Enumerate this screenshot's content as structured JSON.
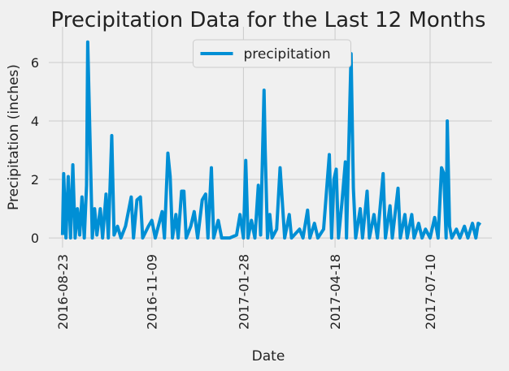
{
  "chart_data": {
    "type": "line",
    "title": "Precipitation Data for the Last 12 Months",
    "xlabel": "Date",
    "ylabel": "Precipitation (inches)",
    "legend": "upper center",
    "grid": true,
    "xlim": [
      "2016-08-11",
      "2017-09-02"
    ],
    "ylim": [
      -0.33,
      7.22
    ],
    "xticks": [
      "2016-08-23",
      "2016-11-09",
      "2017-01-28",
      "2017-04-18",
      "2017-07-10"
    ],
    "yticks": [
      0,
      2,
      4,
      6
    ],
    "x": [
      "2016-08-23",
      "2016-08-24",
      "2016-08-26",
      "2016-08-28",
      "2016-08-30",
      "2016-09-01",
      "2016-09-03",
      "2016-09-05",
      "2016-09-07",
      "2016-09-09",
      "2016-09-11",
      "2016-09-13",
      "2016-09-14",
      "2016-09-16",
      "2016-09-18",
      "2016-09-20",
      "2016-09-22",
      "2016-09-25",
      "2016-09-27",
      "2016-09-30",
      "2016-10-02",
      "2016-10-05",
      "2016-10-07",
      "2016-10-10",
      "2016-10-13",
      "2016-10-17",
      "2016-10-20",
      "2016-10-22",
      "2016-10-24",
      "2016-10-27",
      "2016-10-30",
      "2016-11-01",
      "2016-11-06",
      "2016-11-09",
      "2016-11-12",
      "2016-11-18",
      "2016-11-20",
      "2016-11-23",
      "2016-11-25",
      "2016-11-27",
      "2016-11-30",
      "2016-12-02",
      "2016-12-05",
      "2016-12-07",
      "2016-12-09",
      "2016-12-13",
      "2016-12-16",
      "2016-12-19",
      "2016-12-23",
      "2016-12-26",
      "2016-12-28",
      "2016-12-31",
      "2017-01-02",
      "2017-01-06",
      "2017-01-09",
      "2017-01-16",
      "2017-01-22",
      "2017-01-25",
      "2017-01-28",
      "2017-01-30",
      "2017-02-01",
      "2017-02-04",
      "2017-02-07",
      "2017-02-10",
      "2017-02-12",
      "2017-02-15",
      "2017-02-16",
      "2017-02-18",
      "2017-02-20",
      "2017-02-22",
      "2017-02-26",
      "2017-03-01",
      "2017-03-03",
      "2017-03-05",
      "2017-03-09",
      "2017-03-11",
      "2017-03-18",
      "2017-03-21",
      "2017-03-25",
      "2017-03-27",
      "2017-03-31",
      "2017-04-03",
      "2017-04-08",
      "2017-04-13",
      "2017-04-15",
      "2017-04-17",
      "2017-04-19",
      "2017-04-21",
      "2017-04-24",
      "2017-04-27",
      "2017-04-28",
      "2017-05-02",
      "2017-05-04",
      "2017-05-06",
      "2017-05-10",
      "2017-05-12",
      "2017-05-16",
      "2017-05-18",
      "2017-05-22",
      "2017-05-25",
      "2017-05-30",
      "2017-06-01",
      "2017-06-05",
      "2017-06-07",
      "2017-06-12",
      "2017-06-14",
      "2017-06-18",
      "2017-06-20",
      "2017-06-24",
      "2017-06-26",
      "2017-06-30",
      "2017-07-03",
      "2017-07-06",
      "2017-07-10",
      "2017-07-14",
      "2017-07-17",
      "2017-07-20",
      "2017-07-22",
      "2017-07-24",
      "2017-07-25",
      "2017-07-27",
      "2017-07-29",
      "2017-08-02",
      "2017-08-05",
      "2017-08-09",
      "2017-08-12",
      "2017-08-16",
      "2017-08-19",
      "2017-08-21",
      "2017-08-23"
    ],
    "series": [
      {
        "name": "precipitation",
        "color": "#008fd5",
        "values": [
          0.1,
          2.2,
          0.0,
          2.1,
          0.0,
          2.5,
          0.0,
          1.0,
          0.1,
          1.4,
          0.0,
          1.8,
          6.7,
          3.4,
          0.0,
          1.0,
          0.1,
          1.0,
          0.0,
          1.5,
          0.0,
          3.5,
          0.1,
          0.4,
          0.0,
          0.4,
          1.0,
          1.4,
          0.0,
          1.3,
          1.4,
          0.0,
          0.4,
          0.6,
          0.0,
          0.9,
          0.0,
          2.9,
          2.1,
          0.0,
          0.8,
          0.0,
          1.6,
          1.6,
          0.0,
          0.4,
          0.9,
          0.0,
          1.3,
          1.5,
          0.0,
          2.4,
          0.0,
          0.6,
          0.0,
          0.0,
          0.1,
          0.8,
          0.0,
          2.65,
          0.0,
          0.6,
          0.0,
          1.8,
          0.1,
          5.05,
          3.0,
          0.0,
          0.8,
          0.0,
          0.3,
          2.4,
          1.2,
          0.0,
          0.8,
          0.0,
          0.3,
          0.0,
          0.95,
          0.0,
          0.5,
          0.0,
          0.3,
          2.85,
          0.0,
          2.0,
          2.35,
          0.0,
          1.2,
          2.6,
          0.0,
          6.3,
          1.7,
          0.0,
          1.0,
          0.0,
          1.6,
          0.0,
          0.8,
          0.0,
          2.2,
          0.0,
          1.1,
          0.0,
          1.7,
          0.0,
          0.8,
          0.0,
          0.8,
          0.0,
          0.5,
          0.0,
          0.3,
          0.0,
          0.7,
          0.0,
          2.4,
          2.2,
          0.0,
          4.0,
          0.4,
          0.0,
          0.3,
          0.0,
          0.4,
          0.0,
          0.5,
          0.0,
          0.5,
          0.45
        ]
      }
    ]
  }
}
